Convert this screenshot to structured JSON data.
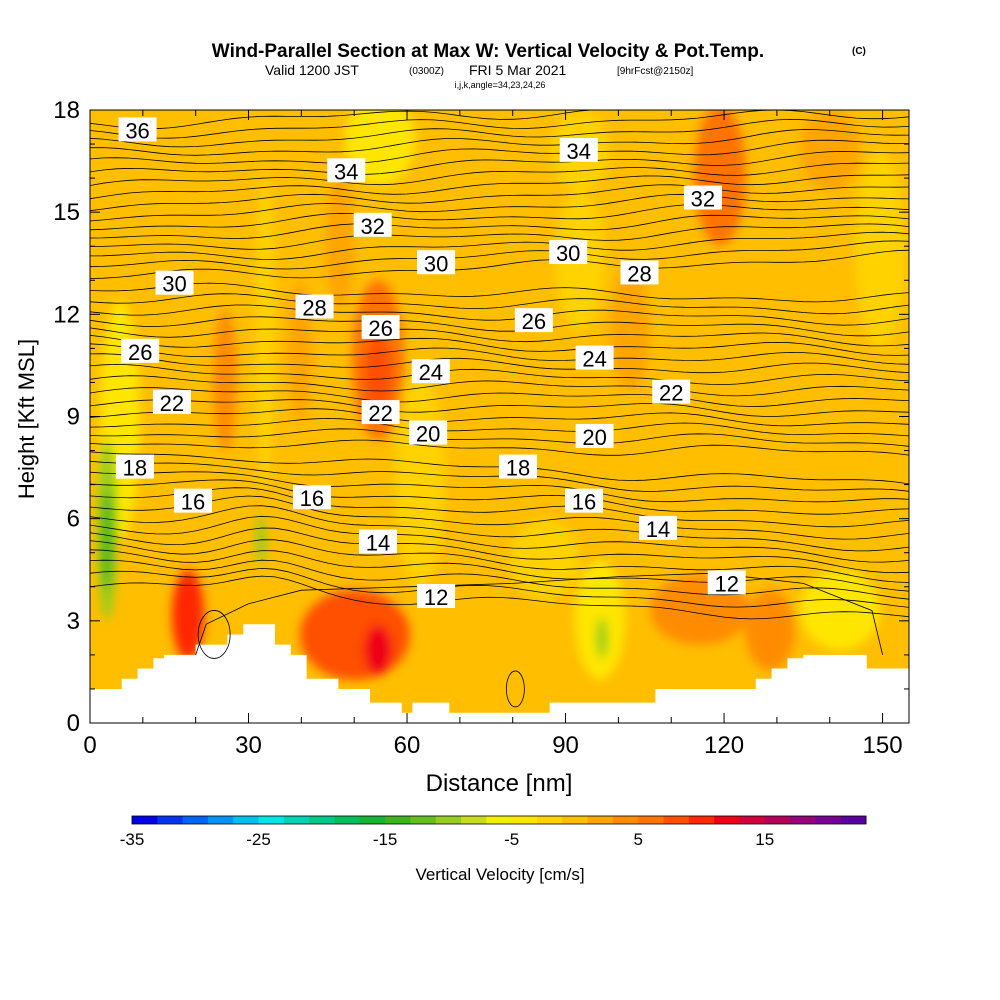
{
  "header": {
    "title": "Wind-Parallel Section at Max W: Vertical Velocity & Pot.Temp.",
    "title_mark": "(C)",
    "valid_prefix": "Valid 1200 JST",
    "valid_utc": "(0300Z)",
    "valid_date": "FRI 5 Mar 2021",
    "valid_fcst": "[9hrFcst@2150z]",
    "section_info": "i,j,k,angle=34,23,24,26"
  },
  "chart_data": {
    "type": "heatmap",
    "xlabel": "Distance [nm]",
    "ylabel": "Height [Kft MSL]",
    "xlim": [
      0,
      155
    ],
    "ylim": [
      0,
      18
    ],
    "x_ticks": [
      "0",
      "30",
      "60",
      "90",
      "120",
      "150"
    ],
    "x_tick_values": [
      0,
      30,
      60,
      90,
      120,
      150
    ],
    "y_ticks": [
      "0",
      "3",
      "6",
      "9",
      "12",
      "15",
      "18"
    ],
    "y_tick_values": [
      0,
      3,
      6,
      9,
      12,
      15,
      18
    ],
    "colorbar": {
      "label": "Vertical Velocity [cm/s]",
      "tick_labels": [
        "-35",
        "-25",
        "-15",
        "-5",
        "5",
        "15"
      ],
      "tick_values": [
        -35,
        -25,
        -15,
        -5,
        5,
        15
      ],
      "min": -35,
      "max": 23,
      "step": 2.5,
      "colors": [
        "#0000e6",
        "#0035f0",
        "#0065f5",
        "#0095f5",
        "#00c0f0",
        "#00e6e6",
        "#00d2b4",
        "#00c887",
        "#00be5a",
        "#14b432",
        "#3cb41e",
        "#64be1e",
        "#96cd1e",
        "#c8dc1e",
        "#f0f000",
        "#ffe600",
        "#ffd200",
        "#ffbe00",
        "#ffa500",
        "#ff8c00",
        "#ff7300",
        "#ff5000",
        "#ff2800",
        "#f00014",
        "#d2003c",
        "#b4005a",
        "#960078",
        "#780096",
        "#5a00a0"
      ]
    },
    "theta_contours": {
      "variable": "Potential Temperature (C)",
      "levels": [
        12,
        14,
        16,
        18,
        20,
        22,
        24,
        26,
        28,
        30,
        32,
        34,
        36
      ],
      "labels": [
        {
          "text": "36",
          "x": 9.0,
          "y": 17.4
        },
        {
          "text": "34",
          "x": 48.5,
          "y": 16.2
        },
        {
          "text": "34",
          "x": 92.5,
          "y": 16.8
        },
        {
          "text": "32",
          "x": 53.5,
          "y": 14.6
        },
        {
          "text": "32",
          "x": 116.0,
          "y": 15.4
        },
        {
          "text": "30",
          "x": 16.0,
          "y": 12.9
        },
        {
          "text": "30",
          "x": 65.5,
          "y": 13.5
        },
        {
          "text": "30",
          "x": 90.5,
          "y": 13.8
        },
        {
          "text": "28",
          "x": 42.5,
          "y": 12.2
        },
        {
          "text": "28",
          "x": 104.0,
          "y": 13.2
        },
        {
          "text": "26",
          "x": 9.5,
          "y": 10.9
        },
        {
          "text": "26",
          "x": 55.0,
          "y": 11.6
        },
        {
          "text": "26",
          "x": 84.0,
          "y": 11.8
        },
        {
          "text": "24",
          "x": 64.5,
          "y": 10.3
        },
        {
          "text": "24",
          "x": 95.5,
          "y": 10.7
        },
        {
          "text": "22",
          "x": 15.5,
          "y": 9.4
        },
        {
          "text": "22",
          "x": 55.0,
          "y": 9.1
        },
        {
          "text": "22",
          "x": 110.0,
          "y": 9.7
        },
        {
          "text": "20",
          "x": 64.0,
          "y": 8.5
        },
        {
          "text": "20",
          "x": 95.5,
          "y": 8.4
        },
        {
          "text": "18",
          "x": 8.5,
          "y": 7.5
        },
        {
          "text": "18",
          "x": 81.0,
          "y": 7.5
        },
        {
          "text": "16",
          "x": 19.5,
          "y": 6.5
        },
        {
          "text": "16",
          "x": 42.0,
          "y": 6.6
        },
        {
          "text": "16",
          "x": 93.5,
          "y": 6.5
        },
        {
          "text": "14",
          "x": 54.5,
          "y": 5.3
        },
        {
          "text": "14",
          "x": 107.5,
          "y": 5.7
        },
        {
          "text": "12",
          "x": 65.5,
          "y": 3.7
        },
        {
          "text": "12",
          "x": 120.5,
          "y": 4.1
        }
      ]
    },
    "terrain": {
      "x": [
        0,
        6,
        6,
        9,
        9,
        12,
        12,
        14,
        14,
        20,
        20,
        26,
        26,
        29,
        29,
        35,
        35,
        38,
        38,
        41,
        41,
        47,
        47,
        53,
        53,
        59,
        59,
        61,
        61,
        68,
        68,
        78,
        78,
        87,
        87,
        90,
        90,
        107,
        107,
        126,
        126,
        129,
        129,
        132,
        132,
        135,
        135,
        147,
        147,
        155
      ],
      "y": [
        1.0,
        1.0,
        1.3,
        1.3,
        1.6,
        1.6,
        1.9,
        1.9,
        2.0,
        2.0,
        2.3,
        2.3,
        2.6,
        2.6,
        2.9,
        2.9,
        2.3,
        2.3,
        2.0,
        2.0,
        1.3,
        1.3,
        1.0,
        1.0,
        0.6,
        0.6,
        0.3,
        0.3,
        0.6,
        0.6,
        0.3,
        0.3,
        0.3,
        0.3,
        0.6,
        0.6,
        0.6,
        0.6,
        1.0,
        1.0,
        1.3,
        1.3,
        1.6,
        1.6,
        1.9,
        1.9,
        2.0,
        2.0,
        1.6,
        1.6
      ]
    }
  }
}
